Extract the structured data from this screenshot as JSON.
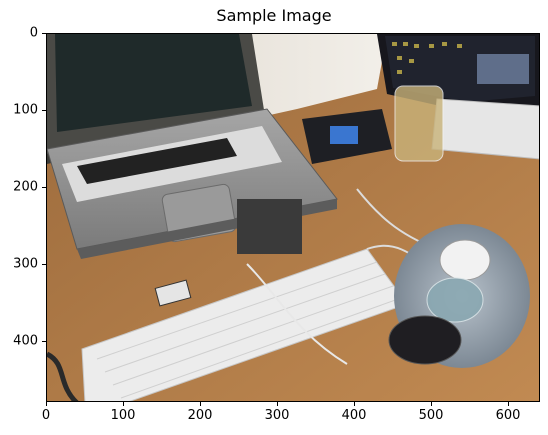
{
  "title": "Sample Image",
  "image": {
    "description_icon": "photo-desk-laptop-keyboard-mouse"
  },
  "x_ticks": [
    "0",
    "100",
    "200",
    "300",
    "400",
    "500",
    "600"
  ],
  "y_ticks": [
    "0",
    "100",
    "200",
    "300",
    "400"
  ],
  "colors": {
    "desk": "#b07a45",
    "laptop": "#8e8e8e",
    "keyboard": "#e9e9e9",
    "monitor": "#1b1b22"
  }
}
